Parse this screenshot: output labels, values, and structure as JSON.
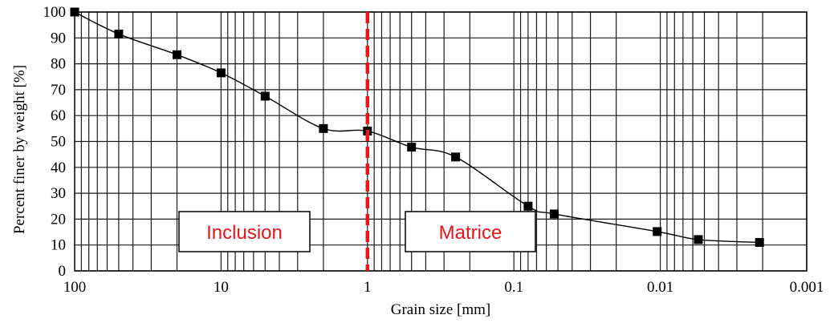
{
  "chart_data": {
    "type": "line",
    "xlabel": "Grain size [mm]",
    "ylabel": "Percent finer by weight [%]",
    "x_scale": "log",
    "x_reversed": true,
    "xlim": [
      100,
      0.001
    ],
    "ylim": [
      0,
      100
    ],
    "grid": true,
    "x_ticks": [
      {
        "value": 100,
        "label": "100"
      },
      {
        "value": 10,
        "label": "10"
      },
      {
        "value": 1,
        "label": "1"
      },
      {
        "value": 0.1,
        "label": "0.1"
      },
      {
        "value": 0.01,
        "label": "0.01"
      },
      {
        "value": 0.001,
        "label": "0.001"
      }
    ],
    "y_ticks": [
      {
        "value": 0,
        "label": "0"
      },
      {
        "value": 10,
        "label": "10"
      },
      {
        "value": 20,
        "label": "20"
      },
      {
        "value": 30,
        "label": "30"
      },
      {
        "value": 40,
        "label": "40"
      },
      {
        "value": 50,
        "label": "50"
      },
      {
        "value": 60,
        "label": "60"
      },
      {
        "value": 70,
        "label": "70"
      },
      {
        "value": 80,
        "label": "80"
      },
      {
        "value": 90,
        "label": "90"
      },
      {
        "value": 100,
        "label": "100"
      }
    ],
    "series": [
      {
        "color": "#000000",
        "marker": "square",
        "points": [
          {
            "x": 100,
            "y": 100
          },
          {
            "x": 50,
            "y": 91.5
          },
          {
            "x": 20,
            "y": 83.5
          },
          {
            "x": 10,
            "y": 76.5
          },
          {
            "x": 5,
            "y": 67.5
          },
          {
            "x": 2,
            "y": 55
          },
          {
            "x": 1,
            "y": 54
          },
          {
            "x": 0.5,
            "y": 47.8
          },
          {
            "x": 0.25,
            "y": 44
          },
          {
            "x": 0.08,
            "y": 25
          },
          {
            "x": 0.053,
            "y": 22
          },
          {
            "x": 0.0105,
            "y": 15.2
          },
          {
            "x": 0.0055,
            "y": 12.1
          },
          {
            "x": 0.0021,
            "y": 11
          }
        ]
      }
    ],
    "divider": {
      "x": 1,
      "color": "#e8141b",
      "style": "dashed"
    },
    "annotations": [
      {
        "text": "Inclusion",
        "color": "#e8141b",
        "side": "left"
      },
      {
        "text": "Matrice",
        "color": "#e8141b",
        "side": "right"
      }
    ]
  }
}
